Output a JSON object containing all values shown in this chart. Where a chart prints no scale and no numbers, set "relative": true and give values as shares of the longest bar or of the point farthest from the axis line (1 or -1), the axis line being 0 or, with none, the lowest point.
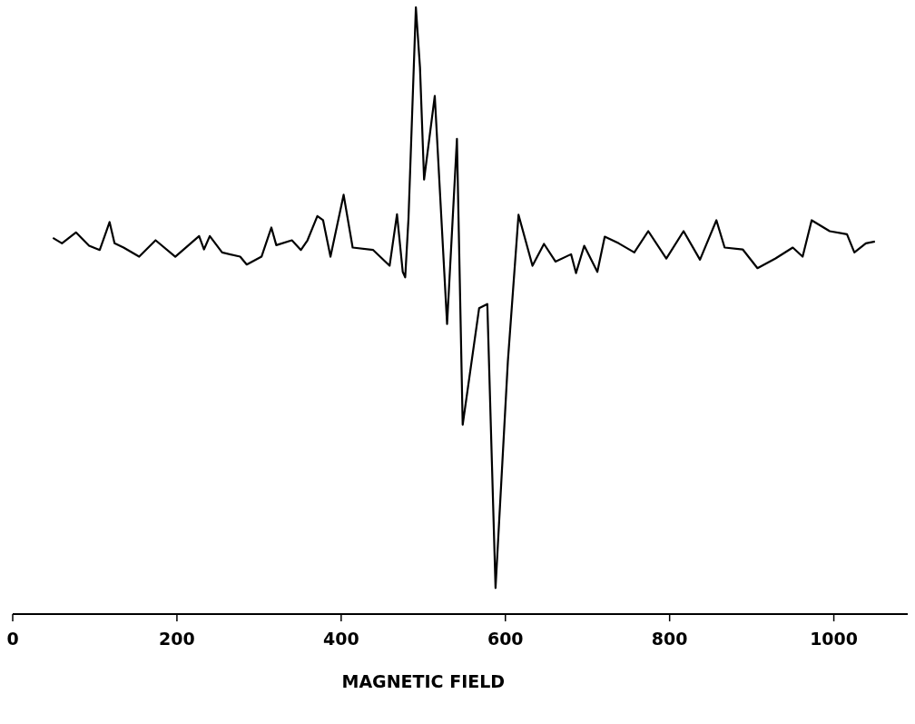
{
  "chart_data": {
    "type": "line",
    "xlabel": "MAGNETIC FIELD",
    "relative": true,
    "xlim": [
      0,
      1090
    ],
    "xticks": [
      0,
      200,
      400,
      600,
      800,
      1000
    ],
    "tick_labels": "x",
    "grid": false,
    "line_style": "solid",
    "series": [
      {
        "color": "#000000",
        "x": [
          49,
          60,
          77,
          93,
          106,
          118,
          124,
          135,
          154,
          174,
          198,
          227,
          233,
          240,
          255,
          277,
          285,
          303,
          315,
          321,
          340,
          351,
          359,
          371,
          378,
          387,
          403,
          414,
          439,
          459,
          468,
          475,
          478,
          482,
          491,
          496,
          501,
          514,
          529,
          541,
          548,
          568,
          578,
          588,
          603,
          616,
          633,
          647,
          661,
          680,
          686,
          696,
          712,
          721,
          738,
          757,
          774,
          796,
          817,
          837,
          857,
          867,
          889,
          907,
          929,
          950,
          962,
          973,
          995,
          1016,
          1025,
          1039,
          1050
        ],
        "values": [
          0.62,
          0.611,
          0.629,
          0.607,
          0.6,
          0.646,
          0.611,
          0.604,
          0.589,
          0.616,
          0.589,
          0.623,
          0.601,
          0.623,
          0.596,
          0.589,
          0.576,
          0.589,
          0.637,
          0.608,
          0.616,
          0.6,
          0.616,
          0.656,
          0.649,
          0.589,
          0.691,
          0.604,
          0.6,
          0.574,
          0.659,
          0.564,
          0.555,
          0.652,
          1,
          0.901,
          0.716,
          0.854,
          0.478,
          0.783,
          0.312,
          0.504,
          0.511,
          0.043,
          0.416,
          0.658,
          0.574,
          0.61,
          0.581,
          0.593,
          0.562,
          0.607,
          0.564,
          0.622,
          0.611,
          0.596,
          0.631,
          0.586,
          0.631,
          0.584,
          0.649,
          0.604,
          0.601,
          0.57,
          0.586,
          0.604,
          0.589,
          0.649,
          0.631,
          0.626,
          0.596,
          0.611,
          0.614
        ]
      }
    ]
  }
}
